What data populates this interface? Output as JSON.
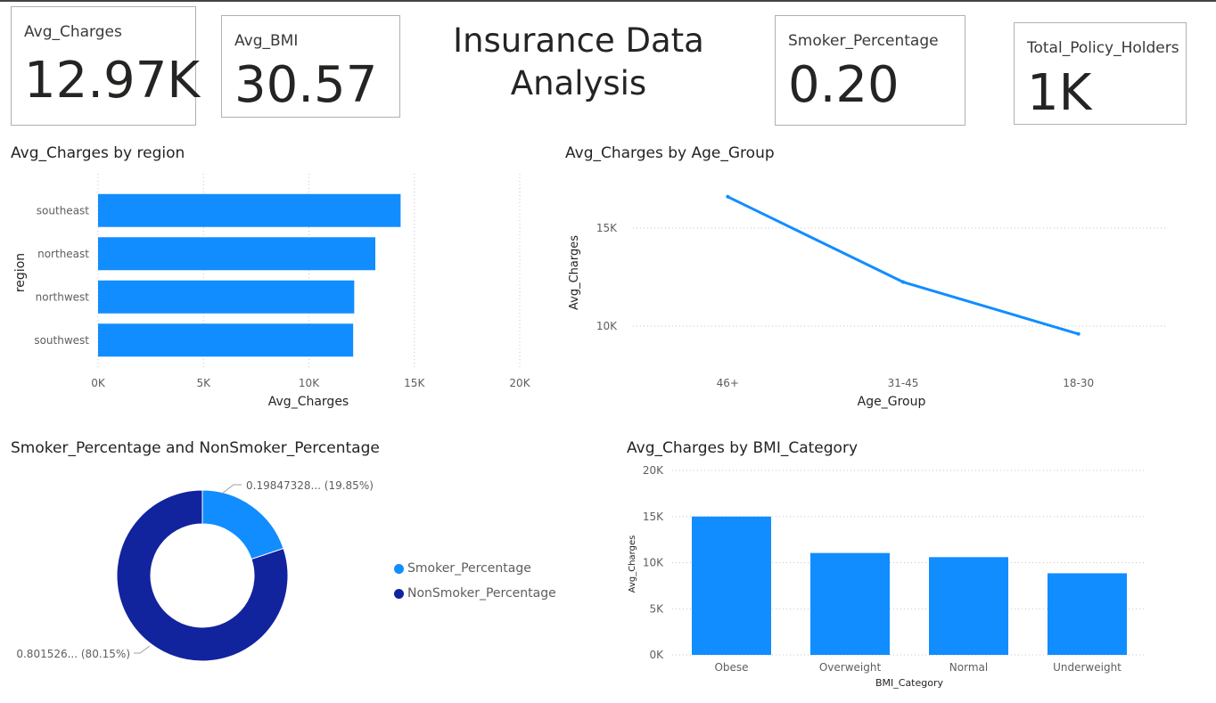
{
  "page_title": [
    "Insurance Data",
    "Analysis"
  ],
  "cards": {
    "avg_charges": {
      "label": "Avg_Charges",
      "value": "12.97K"
    },
    "avg_bmi": {
      "label": "Avg_BMI",
      "value": "30.57"
    },
    "smoker_percentage": {
      "label": "Smoker_Percentage",
      "value": "0.20"
    },
    "total_policy_holders": {
      "label": "Total_Policy_Holders",
      "value": "1K"
    }
  },
  "colors": {
    "bar": "#118dff",
    "line": "#118dff",
    "smoker": "#118dff",
    "nonsmoker": "#12239e",
    "grid": "#c8c6c4",
    "axis_text": "#605e5c"
  },
  "chart_data": [
    {
      "id": "region",
      "type": "bar",
      "orientation": "horizontal",
      "title": "Avg_Charges by region",
      "xlabel": "Avg_Charges",
      "ylabel": "region",
      "categories": [
        "southeast",
        "northeast",
        "northwest",
        "southwest"
      ],
      "values": [
        14350,
        13150,
        12150,
        12100
      ],
      "xlim": [
        0,
        20000
      ],
      "xticks": [
        0,
        5000,
        10000,
        15000,
        20000
      ],
      "xtick_labels": [
        "0K",
        "5K",
        "10K",
        "15K",
        "20K"
      ],
      "grid": true
    },
    {
      "id": "age",
      "type": "line",
      "title": "Avg_Charges by Age_Group",
      "xlabel": "Age_Group",
      "ylabel": "Avg_Charges",
      "categories": [
        "46+",
        "31-45",
        "18-30"
      ],
      "values": [
        16600,
        12250,
        9600
      ],
      "ylim": [
        8000,
        18000
      ],
      "yticks": [
        10000,
        15000
      ],
      "ytick_labels": [
        "10K",
        "15K"
      ],
      "grid": true
    },
    {
      "id": "smoker",
      "type": "pie",
      "donut": true,
      "title": "Smoker_Percentage and NonSmoker_Percentage",
      "slices": [
        {
          "name": "Smoker_Percentage",
          "value": 0.1985,
          "label": "0.19847328... (19.85%)"
        },
        {
          "name": "NonSmoker_Percentage",
          "value": 0.8015,
          "label": "0.801526... (80.15%)"
        }
      ],
      "legend": "right"
    },
    {
      "id": "bmi",
      "type": "bar",
      "title": "Avg_Charges by BMI_Category",
      "xlabel": "BMI_Category",
      "ylabel": "Avg_Charges",
      "categories": [
        "Obese",
        "Overweight",
        "Normal",
        "Underweight"
      ],
      "values": [
        15000,
        11050,
        10600,
        8850
      ],
      "ylim": [
        0,
        20000
      ],
      "yticks": [
        0,
        5000,
        10000,
        15000,
        20000
      ],
      "ytick_labels": [
        "0K",
        "5K",
        "10K",
        "15K",
        "20K"
      ],
      "grid": true
    }
  ]
}
